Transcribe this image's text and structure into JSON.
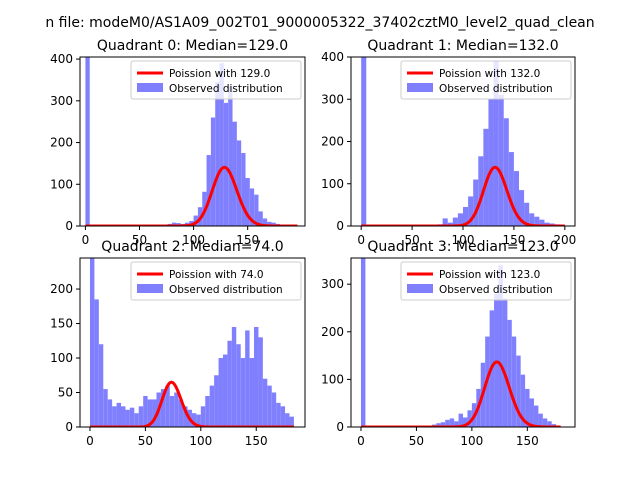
{
  "figure": {
    "suptitle": "n file: modeM0/AS1A09_002T01_9000005322_37402cztM0_level2_quad_clean",
    "colors": {
      "poisson": "#ff0000",
      "observed": "#8080ff",
      "axes": "#000000"
    }
  },
  "chart_data": [
    {
      "type": "bar",
      "title": "Quadrant 0: Median=129.0",
      "xlabel": "",
      "ylabel": "",
      "xlim": [
        -5,
        203
      ],
      "ylim": [
        0,
        405
      ],
      "xticks": [
        0,
        50,
        100,
        150
      ],
      "yticks": [
        0,
        100,
        200,
        300,
        400
      ],
      "legend": {
        "placement": "upper-right",
        "entries": [
          "Poission with 129.0",
          "Observed distribution"
        ]
      },
      "series": [
        {
          "name": "Observed distribution",
          "kind": "histogram",
          "bin_width": 4,
          "bin_edges_start": [
            0,
            72,
            76,
            80,
            84,
            88,
            92,
            96,
            100,
            104,
            108,
            112,
            116,
            120,
            124,
            128,
            132,
            136,
            140,
            144,
            148,
            152,
            156,
            160,
            164,
            168,
            172,
            176,
            180,
            184
          ],
          "values": [
            405,
            3,
            5,
            8,
            7,
            5,
            8,
            12,
            25,
            45,
            82,
            170,
            260,
            345,
            390,
            295,
            335,
            250,
            205,
            175,
            115,
            90,
            75,
            35,
            18,
            10,
            8,
            5,
            3,
            2
          ]
        },
        {
          "name": "Poission with 129.0",
          "kind": "poisson",
          "mean": 129.0,
          "scale": 4000,
          "x_range": [
            0,
            196
          ]
        }
      ]
    },
    {
      "type": "bar",
      "title": "Quadrant 1: Median=132.0",
      "xlabel": "",
      "ylabel": "",
      "xlim": [
        -10,
        210
      ],
      "ylim": [
        0,
        400
      ],
      "xticks": [
        0,
        50,
        100,
        150,
        200
      ],
      "yticks": [
        0,
        100,
        200,
        300,
        400
      ],
      "legend": {
        "placement": "upper-right",
        "entries": [
          "Poission with 132.0",
          "Observed distribution"
        ]
      },
      "series": [
        {
          "name": "Observed distribution",
          "kind": "histogram",
          "bin_width": 5,
          "bin_edges_start": [
            0,
            75,
            80,
            85,
            90,
            95,
            100,
            105,
            110,
            115,
            120,
            125,
            130,
            135,
            140,
            145,
            150,
            155,
            160,
            165,
            170,
            175,
            180,
            185,
            190,
            195
          ],
          "values": [
            400,
            4,
            18,
            8,
            20,
            30,
            45,
            70,
            110,
            165,
            230,
            300,
            390,
            310,
            255,
            175,
            130,
            85,
            55,
            30,
            22,
            15,
            8,
            6,
            4,
            2
          ]
        },
        {
          "name": "Poission with 132.0",
          "kind": "poisson",
          "mean": 132.0,
          "scale": 4000,
          "x_range": [
            0,
            200
          ]
        }
      ]
    },
    {
      "type": "bar",
      "title": "Quadrant 2: Median=74.0",
      "xlabel": "",
      "ylabel": "",
      "xlim": [
        -9,
        194
      ],
      "ylim": [
        0,
        245
      ],
      "xticks": [
        0,
        50,
        100,
        150
      ],
      "yticks": [
        0,
        50,
        100,
        150,
        200
      ],
      "legend": {
        "placement": "upper-right",
        "entries": [
          "Poission with 74.0",
          "Observed distribution"
        ]
      },
      "series": [
        {
          "name": "Observed distribution",
          "kind": "histogram",
          "bin_width": 4,
          "bin_edges_start": [
            0,
            4,
            8,
            12,
            16,
            20,
            24,
            28,
            32,
            36,
            40,
            44,
            48,
            52,
            56,
            60,
            64,
            68,
            72,
            76,
            80,
            84,
            88,
            92,
            96,
            100,
            104,
            108,
            112,
            116,
            120,
            124,
            128,
            132,
            136,
            140,
            144,
            148,
            152,
            156,
            160,
            164,
            168,
            172,
            176,
            180
          ],
          "values": [
            245,
            185,
            120,
            55,
            40,
            30,
            35,
            30,
            25,
            28,
            20,
            30,
            45,
            40,
            40,
            50,
            55,
            60,
            45,
            50,
            40,
            30,
            25,
            20,
            18,
            30,
            45,
            60,
            75,
            100,
            105,
            125,
            145,
            120,
            100,
            140,
            100,
            145,
            130,
            70,
            60,
            50,
            35,
            30,
            20,
            15
          ]
        },
        {
          "name": "Poission with 74.0",
          "kind": "poisson",
          "mean": 74.0,
          "scale": 1400,
          "x_range": [
            0,
            184
          ]
        }
      ]
    },
    {
      "type": "bar",
      "title": "Quadrant 3: Median=123.0",
      "xlabel": "",
      "ylabel": "",
      "xlim": [
        -9,
        193
      ],
      "ylim": [
        0,
        355
      ],
      "xticks": [
        0,
        50,
        100,
        150
      ],
      "yticks": [
        0,
        100,
        200,
        300
      ],
      "legend": {
        "placement": "upper-right",
        "entries": [
          "Poission with 123.0",
          "Observed distribution"
        ]
      },
      "series": [
        {
          "name": "Observed distribution",
          "kind": "histogram",
          "bin_width": 4,
          "bin_edges_start": [
            0,
            60,
            64,
            68,
            72,
            76,
            80,
            84,
            88,
            92,
            96,
            100,
            104,
            108,
            112,
            116,
            120,
            124,
            128,
            132,
            136,
            140,
            144,
            148,
            152,
            156,
            160,
            164,
            168,
            172,
            176
          ],
          "values": [
            355,
            3,
            5,
            8,
            10,
            15,
            18,
            12,
            28,
            20,
            35,
            50,
            80,
            135,
            190,
            245,
            280,
            340,
            270,
            225,
            190,
            150,
            110,
            80,
            60,
            45,
            28,
            18,
            12,
            6,
            3
          ]
        },
        {
          "name": "Poission with 123.0",
          "kind": "poisson",
          "mean": 123.0,
          "scale": 3800,
          "x_range": [
            0,
            180
          ]
        }
      ]
    }
  ]
}
